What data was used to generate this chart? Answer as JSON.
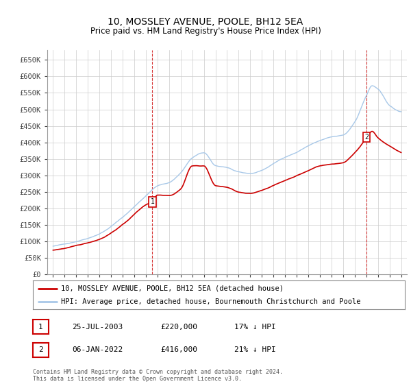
{
  "title": "10, MOSSLEY AVENUE, POOLE, BH12 5EA",
  "subtitle": "Price paid vs. HM Land Registry's House Price Index (HPI)",
  "ylabel_ticks": [
    "£0",
    "£50K",
    "£100K",
    "£150K",
    "£200K",
    "£250K",
    "£300K",
    "£350K",
    "£400K",
    "£450K",
    "£500K",
    "£550K",
    "£600K",
    "£650K"
  ],
  "ylim": [
    0,
    680000
  ],
  "xlim_start": 1994.5,
  "xlim_end": 2025.5,
  "hpi_color": "#a8c8e8",
  "price_color": "#cc0000",
  "marker1_x": 2003.56,
  "marker1_y": 220000,
  "marker2_x": 2022.03,
  "marker2_y": 416000,
  "legend_line1": "10, MOSSLEY AVENUE, POOLE, BH12 5EA (detached house)",
  "legend_line2": "HPI: Average price, detached house, Bournemouth Christchurch and Poole",
  "table_row1": [
    "1",
    "25-JUL-2003",
    "£220,000",
    "17% ↓ HPI"
  ],
  "table_row2": [
    "2",
    "06-JAN-2022",
    "£416,000",
    "21% ↓ HPI"
  ],
  "footnote": "Contains HM Land Registry data © Crown copyright and database right 2024.\nThis data is licensed under the Open Government Licence v3.0.",
  "background_color": "#ffffff",
  "grid_color": "#cccccc"
}
